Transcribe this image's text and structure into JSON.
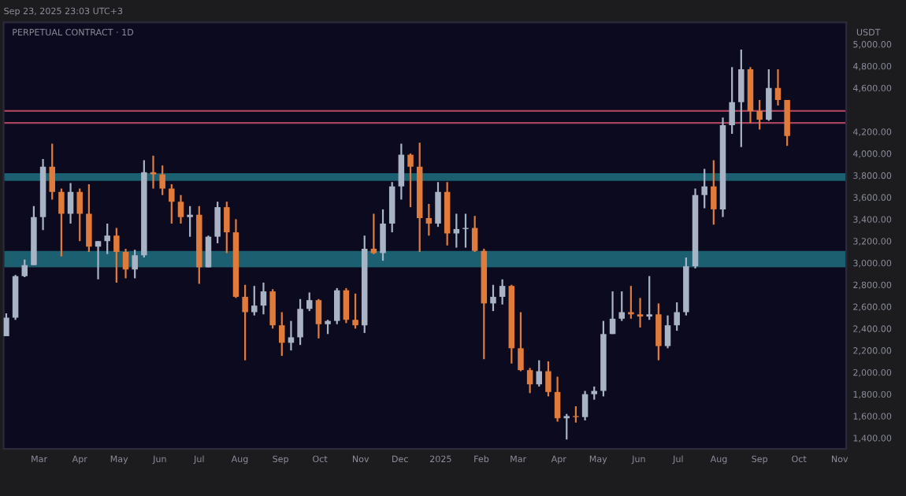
{
  "chart_data": {
    "type": "candlestick",
    "title": "PERPETUAL CONTRACT · 1D",
    "ylabel": "USDT",
    "annotations": [
      "Sep 23, 2025 23:03 UTC+3"
    ],
    "x": [
      "2024-02-05",
      "2024-02-12",
      "2024-02-19",
      "2024-02-26",
      "2024-03-04",
      "2024-03-11",
      "2024-03-18",
      "2024-03-25",
      "2024-04-01",
      "2024-04-08",
      "2024-04-15",
      "2024-04-22",
      "2024-04-29",
      "2024-05-06",
      "2024-05-13",
      "2024-05-20",
      "2024-05-27",
      "2024-06-03",
      "2024-06-10",
      "2024-06-17",
      "2024-06-24",
      "2024-07-01",
      "2024-07-08",
      "2024-07-15",
      "2024-07-22",
      "2024-07-29",
      "2024-08-05",
      "2024-08-12",
      "2024-08-19",
      "2024-08-26",
      "2024-09-02",
      "2024-09-09",
      "2024-09-16",
      "2024-09-23",
      "2024-09-30",
      "2024-10-07",
      "2024-10-14",
      "2024-10-21",
      "2024-10-28",
      "2024-11-04",
      "2024-11-11",
      "2024-11-18",
      "2024-11-25",
      "2024-12-02",
      "2024-12-09",
      "2024-12-16",
      "2024-12-23",
      "2024-12-30",
      "2025-01-06",
      "2025-01-13",
      "2025-01-20",
      "2025-01-27",
      "2025-02-03",
      "2025-02-10",
      "2025-02-17",
      "2025-02-24",
      "2025-03-03",
      "2025-03-10",
      "2025-03-17",
      "2025-03-24",
      "2025-03-31",
      "2025-04-07",
      "2025-04-14",
      "2025-04-21",
      "2025-04-28",
      "2025-05-05",
      "2025-05-12",
      "2025-05-19",
      "2025-05-26",
      "2025-06-02",
      "2025-06-09",
      "2025-06-16",
      "2025-06-23",
      "2025-06-30",
      "2025-07-07",
      "2025-07-14",
      "2025-07-21",
      "2025-07-28",
      "2025-08-04",
      "2025-08-11",
      "2025-08-18",
      "2025-08-25",
      "2025-09-01",
      "2025-09-08",
      "2025-09-15",
      "2025-09-22"
    ],
    "ohlc": [
      [
        2330,
        2540,
        2330,
        2500
      ],
      [
        2500,
        2890,
        2480,
        2880
      ],
      [
        2880,
        3030,
        2870,
        2980
      ],
      [
        2980,
        3520,
        2980,
        3420
      ],
      [
        3420,
        3950,
        3300,
        3880
      ],
      [
        3880,
        4090,
        3580,
        3650
      ],
      [
        3650,
        3680,
        3060,
        3450
      ],
      [
        3450,
        3730,
        3360,
        3650
      ],
      [
        3650,
        3680,
        3200,
        3450
      ],
      [
        3450,
        3720,
        3100,
        3150
      ],
      [
        3150,
        3200,
        2850,
        3200
      ],
      [
        3200,
        3360,
        3080,
        3250
      ],
      [
        3250,
        3320,
        2820,
        3100
      ],
      [
        3100,
        3130,
        2860,
        2940
      ],
      [
        2940,
        3120,
        2860,
        3070
      ],
      [
        3070,
        3940,
        3050,
        3830
      ],
      [
        3830,
        3980,
        3680,
        3810
      ],
      [
        3810,
        3890,
        3620,
        3680
      ],
      [
        3680,
        3720,
        3360,
        3560
      ],
      [
        3560,
        3620,
        3360,
        3420
      ],
      [
        3420,
        3520,
        3240,
        3440
      ],
      [
        3440,
        3520,
        2810,
        2960
      ],
      [
        2960,
        3250,
        2960,
        3240
      ],
      [
        3240,
        3560,
        3180,
        3510
      ],
      [
        3510,
        3560,
        3090,
        3280
      ],
      [
        3280,
        3400,
        2680,
        2690
      ],
      [
        2690,
        2800,
        2110,
        2550
      ],
      [
        2550,
        2790,
        2520,
        2610
      ],
      [
        2610,
        2820,
        2530,
        2740
      ],
      [
        2740,
        2760,
        2400,
        2430
      ],
      [
        2430,
        2550,
        2150,
        2270
      ],
      [
        2270,
        2470,
        2200,
        2320
      ],
      [
        2320,
        2670,
        2250,
        2580
      ],
      [
        2580,
        2730,
        2560,
        2660
      ],
      [
        2660,
        2670,
        2310,
        2440
      ],
      [
        2440,
        2480,
        2350,
        2470
      ],
      [
        2470,
        2770,
        2440,
        2750
      ],
      [
        2750,
        2770,
        2450,
        2480
      ],
      [
        2480,
        2720,
        2400,
        2430
      ],
      [
        2430,
        3250,
        2360,
        3130
      ],
      [
        3130,
        3450,
        3080,
        3090
      ],
      [
        3090,
        3490,
        3020,
        3360
      ],
      [
        3360,
        3740,
        3280,
        3700
      ],
      [
        3700,
        4090,
        3580,
        3990
      ],
      [
        3990,
        4000,
        3510,
        3880
      ],
      [
        3880,
        4100,
        3100,
        3410
      ],
      [
        3410,
        3540,
        3250,
        3360
      ],
      [
        3360,
        3740,
        3330,
        3650
      ],
      [
        3650,
        3740,
        3160,
        3270
      ],
      [
        3270,
        3450,
        3140,
        3310
      ],
      [
        3310,
        3450,
        3140,
        3320
      ],
      [
        3320,
        3430,
        3100,
        3110
      ],
      [
        3110,
        3130,
        2120,
        2630
      ],
      [
        2630,
        2800,
        2560,
        2690
      ],
      [
        2690,
        2850,
        2620,
        2790
      ],
      [
        2790,
        2800,
        2080,
        2220
      ],
      [
        2220,
        2550,
        2010,
        2020
      ],
      [
        2020,
        2040,
        1810,
        1890
      ],
      [
        1890,
        2110,
        1870,
        2010
      ],
      [
        2010,
        2100,
        1780,
        1820
      ],
      [
        1820,
        1960,
        1550,
        1580
      ],
      [
        1580,
        1620,
        1385,
        1600
      ],
      [
        1600,
        1690,
        1540,
        1590
      ],
      [
        1590,
        1830,
        1560,
        1800
      ],
      [
        1800,
        1870,
        1750,
        1830
      ],
      [
        1830,
        2470,
        1780,
        2350
      ],
      [
        2350,
        2740,
        2350,
        2490
      ],
      [
        2490,
        2740,
        2470,
        2550
      ],
      [
        2550,
        2790,
        2490,
        2530
      ],
      [
        2530,
        2680,
        2410,
        2510
      ],
      [
        2510,
        2880,
        2480,
        2530
      ],
      [
        2530,
        2630,
        2110,
        2240
      ],
      [
        2240,
        2520,
        2220,
        2430
      ],
      [
        2430,
        2640,
        2380,
        2550
      ],
      [
        2550,
        3050,
        2520,
        2970
      ],
      [
        2970,
        3680,
        2950,
        3620
      ],
      [
        3620,
        3860,
        3500,
        3700
      ],
      [
        3700,
        3940,
        3350,
        3490
      ],
      [
        3490,
        4330,
        3420,
        4260
      ],
      [
        4260,
        4790,
        4180,
        4470
      ],
      [
        4470,
        4950,
        4060,
        4770
      ],
      [
        4770,
        4790,
        4280,
        4390
      ],
      [
        4390,
        4490,
        4220,
        4310
      ],
      [
        4310,
        4770,
        4300,
        4600
      ],
      [
        4600,
        4770,
        4440,
        4490
      ],
      [
        4490,
        4490,
        4070,
        4160
      ]
    ],
    "colors": [
      "#a9b3c6",
      "#a9b3c6",
      "#a9b3c6",
      "#a9b3c6",
      "#a9b3c6",
      "#e07b3c",
      "#e07b3c",
      "#a9b3c6",
      "#e07b3c",
      "#e07b3c",
      "#a9b3c6",
      "#a9b3c6",
      "#e07b3c",
      "#e07b3c",
      "#a9b3c6",
      "#a9b3c6",
      "#e07b3c",
      "#e07b3c",
      "#e07b3c",
      "#e07b3c",
      "#a9b3c6",
      "#e07b3c",
      "#a9b3c6",
      "#a9b3c6",
      "#e07b3c",
      "#e07b3c",
      "#e07b3c",
      "#a9b3c6",
      "#a9b3c6",
      "#e07b3c",
      "#e07b3c",
      "#a9b3c6",
      "#a9b3c6",
      "#a9b3c6",
      "#e07b3c",
      "#a9b3c6",
      "#a9b3c6",
      "#e07b3c",
      "#e07b3c",
      "#a9b3c6",
      "#e07b3c",
      "#a9b3c6",
      "#a9b3c6",
      "#a9b3c6",
      "#e07b3c",
      "#e07b3c",
      "#e07b3c",
      "#a9b3c6",
      "#e07b3c",
      "#a9b3c6",
      "#a9b3c6",
      "#e07b3c",
      "#e07b3c",
      "#a9b3c6",
      "#a9b3c6",
      "#e07b3c",
      "#e07b3c",
      "#e07b3c",
      "#a9b3c6",
      "#e07b3c",
      "#e07b3c",
      "#a9b3c6",
      "#e07b3c",
      "#a9b3c6",
      "#a9b3c6",
      "#a9b3c6",
      "#a9b3c6",
      "#a9b3c6",
      "#e07b3c",
      "#e07b3c",
      "#a9b3c6",
      "#e07b3c",
      "#a9b3c6",
      "#a9b3c6",
      "#a9b3c6",
      "#a9b3c6",
      "#a9b3c6",
      "#e07b3c",
      "#a9b3c6",
      "#a9b3c6",
      "#a9b3c6",
      "#e07b3c",
      "#e07b3c",
      "#a9b3c6",
      "#e07b3c",
      "#e07b3c"
    ],
    "xlim": [
      "2024-02-03",
      "2025-11-06"
    ],
    "xticks": [
      {
        "value": "2024-03-01",
        "label": "Mar"
      },
      {
        "value": "2024-04-01",
        "label": "Apr"
      },
      {
        "value": "2024-05-01",
        "label": "May"
      },
      {
        "value": "2024-06-01",
        "label": "Jun"
      },
      {
        "value": "2024-07-01",
        "label": "Jul"
      },
      {
        "value": "2024-08-01",
        "label": "Aug"
      },
      {
        "value": "2024-09-01",
        "label": "Sep"
      },
      {
        "value": "2024-10-01",
        "label": "Oct"
      },
      {
        "value": "2024-11-01",
        "label": "Nov"
      },
      {
        "value": "2024-12-01",
        "label": "Dec"
      },
      {
        "value": "2025-01-01",
        "label": "2025"
      },
      {
        "value": "2025-02-01",
        "label": "Feb"
      },
      {
        "value": "2025-03-01",
        "label": "Mar"
      },
      {
        "value": "2025-04-01",
        "label": "Apr"
      },
      {
        "value": "2025-05-01",
        "label": "May"
      },
      {
        "value": "2025-06-01",
        "label": "Jun"
      },
      {
        "value": "2025-07-01",
        "label": "Jul"
      },
      {
        "value": "2025-08-01",
        "label": "Aug"
      },
      {
        "value": "2025-09-01",
        "label": "Sep"
      },
      {
        "value": "2025-10-01",
        "label": "Oct"
      },
      {
        "value": "2025-11-01",
        "label": "Nov"
      }
    ],
    "ylim": [
      1300,
      5200
    ],
    "yticks": [
      {
        "value": 1400,
        "label": "1,400.00"
      },
      {
        "value": 1600,
        "label": "1,600.00"
      },
      {
        "value": 1800,
        "label": "1,800.00"
      },
      {
        "value": 2000,
        "label": "2,000.00"
      },
      {
        "value": 2200,
        "label": "2,200.00"
      },
      {
        "value": 2400,
        "label": "2,400.00"
      },
      {
        "value": 2600,
        "label": "2,600.00"
      },
      {
        "value": 2800,
        "label": "2,800.00"
      },
      {
        "value": 3000,
        "label": "3,000.00"
      },
      {
        "value": 3200,
        "label": "3,200.00"
      },
      {
        "value": 3400,
        "label": "3,400.00"
      },
      {
        "value": 3600,
        "label": "3,600.00"
      },
      {
        "value": 3800,
        "label": "3,800.00"
      },
      {
        "value": 4000,
        "label": "4,000.00"
      },
      {
        "value": 4200,
        "label": "4,200.00"
      },
      {
        "value": 4400,
        "label": null
      },
      {
        "value": 4600,
        "label": "4,600.00"
      },
      {
        "value": 4800,
        "label": "4,800.00"
      },
      {
        "value": 5000,
        "label": "5,000.00"
      }
    ],
    "bands": [
      {
        "axis": "y",
        "from": 3750,
        "to": 3820,
        "color": "#1b5f70"
      },
      {
        "axis": "y",
        "from": 2960,
        "to": 3110,
        "color": "#1b5f70"
      }
    ],
    "ref_lines": [
      {
        "axis": "y",
        "value": 4390,
        "color": "#a8435e",
        "line_style": "solid"
      },
      {
        "axis": "y",
        "value": 4280,
        "color": "#a8435e",
        "line_style": "solid"
      }
    ],
    "grid": false
  }
}
